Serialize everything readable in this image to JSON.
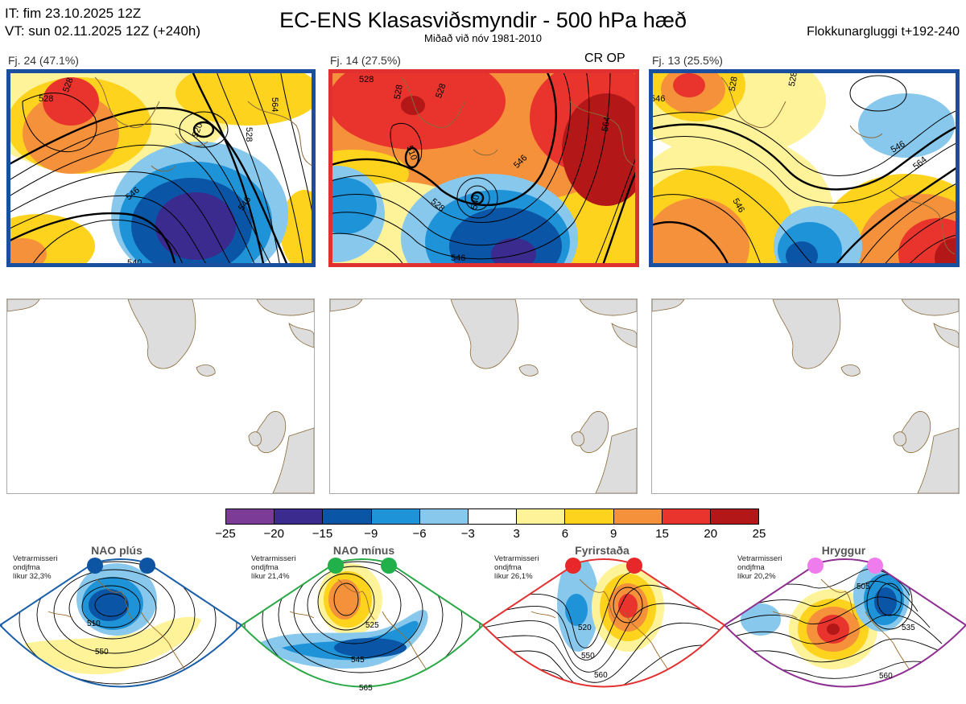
{
  "header": {
    "it_line": "IT: fim 23.10.2025 12Z",
    "vt_line": "VT: sun 02.11.2025 12Z  (+240h)",
    "title": "EC-ENS Klasasviðsmyndir - 500 hPa hæð",
    "subtitle": "Miðað við nóv 1981-2010",
    "window": "Flokkunargluggi t+192-240"
  },
  "panels": [
    {
      "label": "Fj. 24 (47.1%)",
      "border_color": "#1a4fa0",
      "tag": "",
      "contour_labels": [
        "528",
        "528",
        "520",
        "528",
        "546",
        "540",
        "564",
        "546"
      ]
    },
    {
      "label": "Fj. 14 (27.5%)",
      "border_color": "#e03030",
      "tag": "CR OP",
      "contour_labels": [
        "528",
        "528",
        "528",
        "510",
        "546",
        "528",
        "540",
        "564",
        "546"
      ]
    },
    {
      "label": "Fj. 13 (25.5%)",
      "border_color": "#1a4fa0",
      "tag": "",
      "contour_labels": [
        "546",
        "528",
        "528",
        "546",
        "564",
        "546"
      ]
    }
  ],
  "colorbar": {
    "colors": [
      "#7c3b96",
      "#3b2b8f",
      "#0a55a5",
      "#1f93d8",
      "#88c8ec",
      "#ffffff",
      "#fff39a",
      "#fdd31d",
      "#f6913b",
      "#e9342d",
      "#b31718"
    ],
    "labels": [
      "−25",
      "−20",
      "−15",
      "−9",
      "−6",
      "−3",
      "3",
      "6",
      "9",
      "15",
      "20",
      "25"
    ]
  },
  "regimes": [
    {
      "title": "NAO plús",
      "info": [
        "Vetrarmisseri",
        "ondjfma",
        "líkur 32,3%"
      ],
      "color": "#1a5fa8",
      "dot_color": "#0d55a3",
      "contour_labels": [
        "510",
        "550"
      ]
    },
    {
      "title": "NAO mínus",
      "info": [
        "Vetrarmisseri",
        "ondjfma",
        "líkur 21,4%"
      ],
      "color": "#29a845",
      "dot_color": "#22b04a",
      "contour_labels": [
        "525",
        "545",
        "565"
      ]
    },
    {
      "title": "Fyrirstaða",
      "info": [
        "Vetrarmisseri",
        "ondjfma",
        "líkur 26,1%"
      ],
      "color": "#e33030",
      "dot_color": "#e8272a",
      "contour_labels": [
        "520",
        "550",
        "560"
      ]
    },
    {
      "title": "Hryggur",
      "info": [
        "Vetrarmisseri",
        "ondjfma",
        "líkur 20,2%"
      ],
      "color": "#8e2f91",
      "dot_color": "#ee7cec",
      "contour_labels": [
        "505",
        "535",
        "560"
      ]
    }
  ]
}
